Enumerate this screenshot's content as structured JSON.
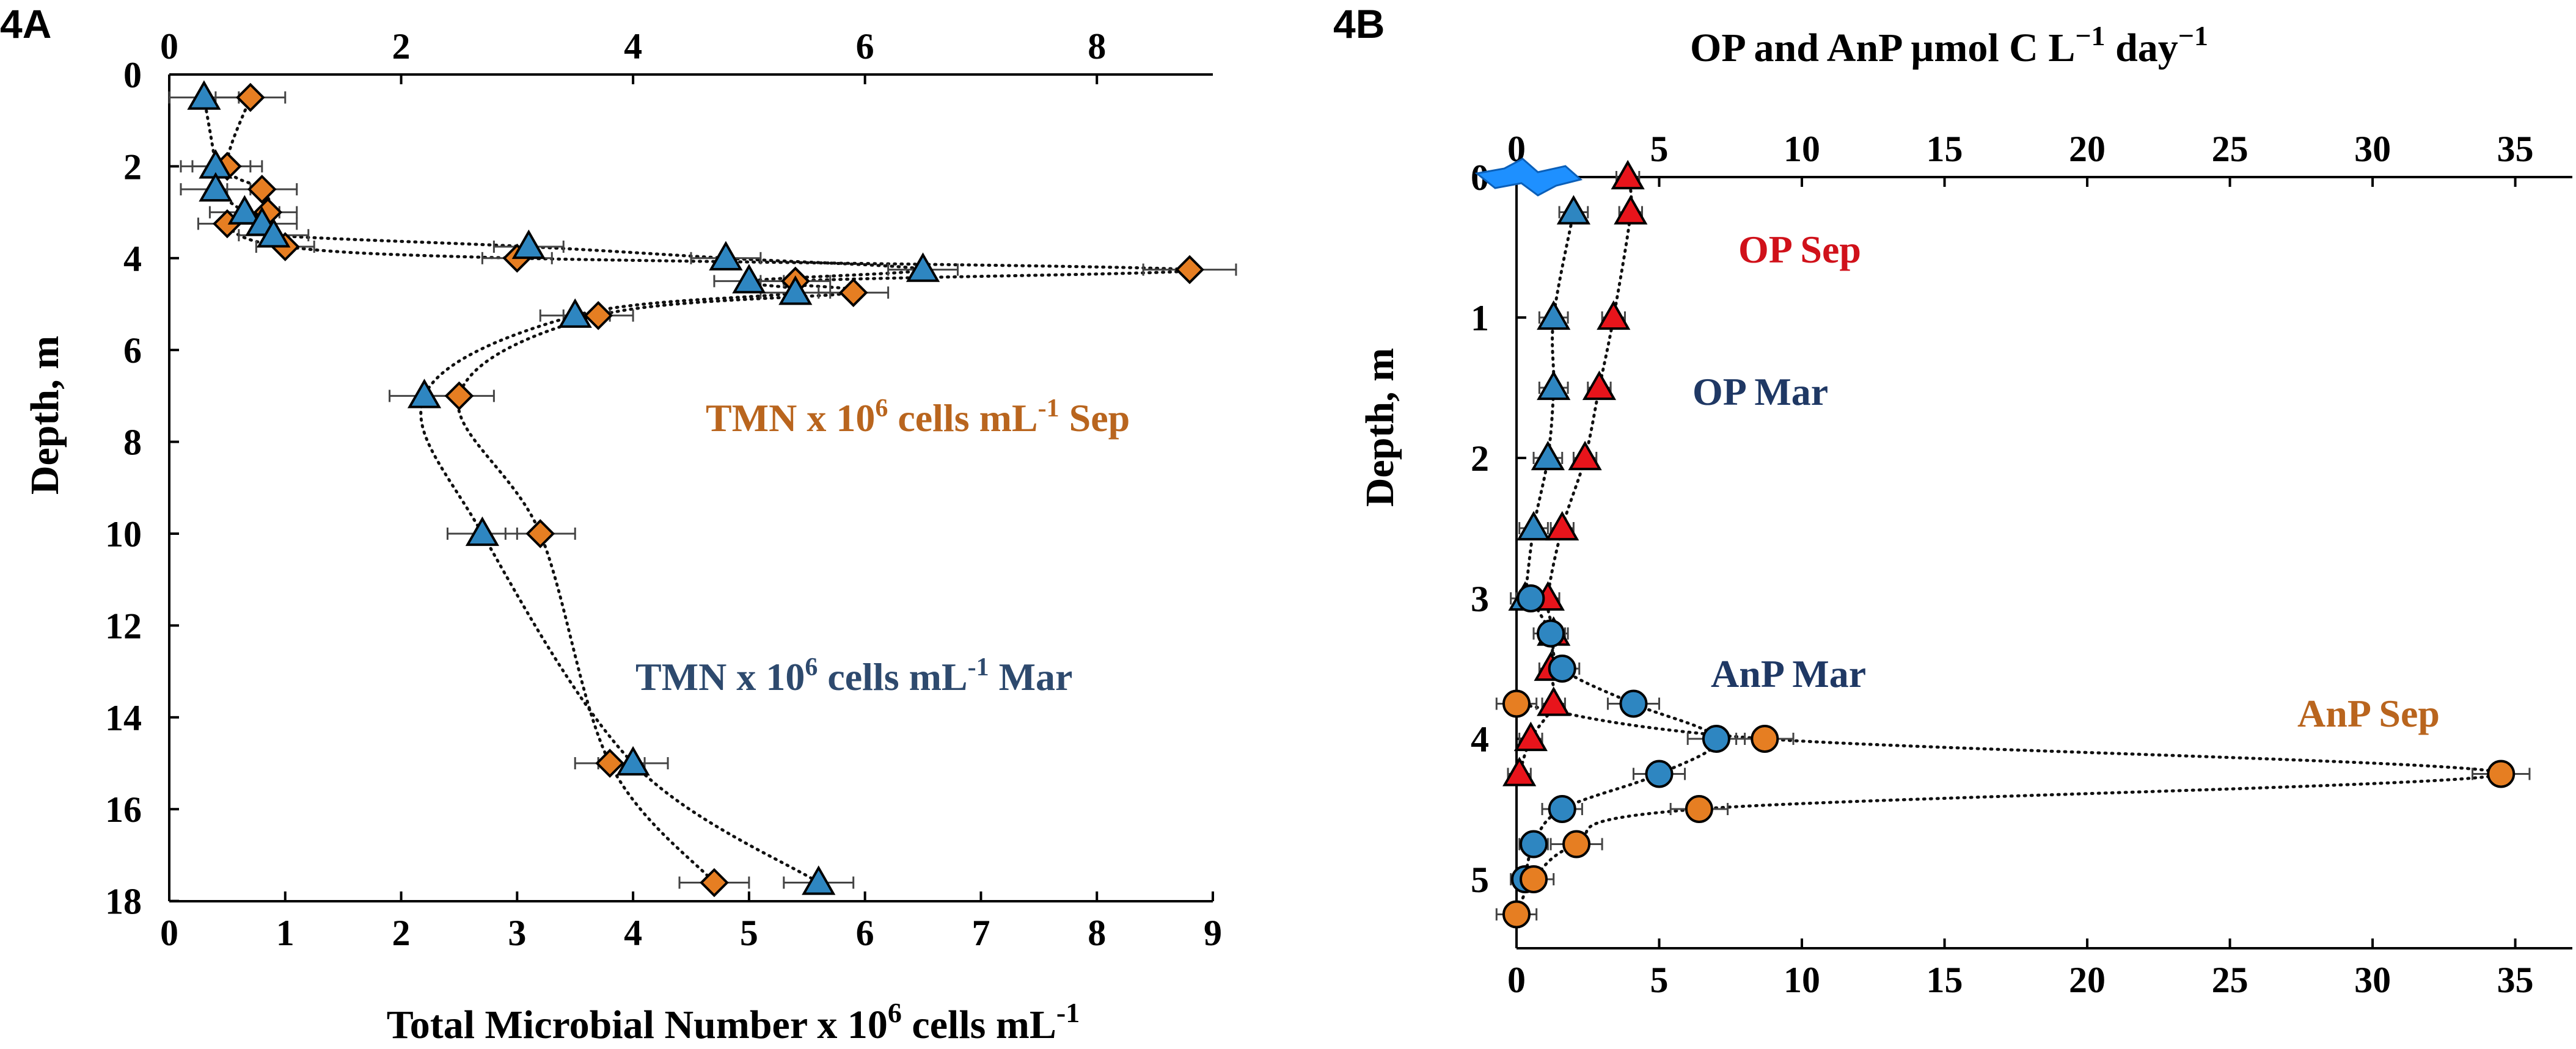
{
  "chart_data": [
    {
      "panel": "4A",
      "type": "scatter",
      "title": "",
      "xlabel": "Total Microbial Number x 10⁶ cells mL⁻¹",
      "ylabel": "Depth, m",
      "xlim": [
        0,
        9
      ],
      "ylim": [
        0,
        18
      ],
      "xticks_bottom": [
        0,
        1,
        2,
        3,
        4,
        5,
        6,
        7,
        8,
        9
      ],
      "xticks_top": [
        0,
        2,
        4,
        6,
        8
      ],
      "yticks": [
        0,
        2,
        4,
        6,
        8,
        10,
        12,
        14,
        16,
        18
      ],
      "grid": false,
      "series": [
        {
          "name": "TMN x 10⁶ cells mL⁻¹ Sep",
          "marker": "diamond",
          "color": "#E67E22",
          "annotation": "TMN x 10⁶ cells mL⁻¹ Sep",
          "x": [
            0.7,
            0.5,
            0.8,
            0.85,
            0.5,
            1.0,
            3.0,
            8.8,
            5.4,
            5.9,
            3.7,
            2.5,
            3.2,
            3.8,
            4.7
          ],
          "y": [
            0.5,
            2.0,
            2.5,
            3.0,
            3.25,
            3.75,
            4.0,
            4.25,
            4.5,
            4.75,
            5.25,
            7.0,
            10.0,
            15.0,
            17.6
          ],
          "xerr": [
            0.3,
            0.3,
            0.3,
            0.25,
            0.25,
            0.25,
            0.3,
            0.4,
            0.3,
            0.3,
            0.3,
            0.3,
            0.3,
            0.3,
            0.3
          ]
        },
        {
          "name": "TMN x 10⁶ cells mL⁻¹ Mar",
          "marker": "triangle",
          "color": "#2E86C1",
          "annotation": "TMN x 10⁶ cells mL⁻¹ Mar",
          "x": [
            0.3,
            0.4,
            0.4,
            0.65,
            0.8,
            0.9,
            3.1,
            4.8,
            6.5,
            5.0,
            5.4,
            3.5,
            2.2,
            2.7,
            4.0,
            5.6
          ],
          "y": [
            0.5,
            2.0,
            2.5,
            3.0,
            3.25,
            3.5,
            3.75,
            4.0,
            4.25,
            4.5,
            4.75,
            5.25,
            7.0,
            10.0,
            15.0,
            17.6
          ],
          "xerr": [
            0.3,
            0.3,
            0.3,
            0.3,
            0.3,
            0.3,
            0.3,
            0.3,
            0.3,
            0.3,
            0.3,
            0.3,
            0.3,
            0.3,
            0.3,
            0.3
          ]
        }
      ]
    },
    {
      "panel": "4B",
      "type": "scatter",
      "title": "OP and AnP   µmol C L⁻¹ day⁻¹",
      "xlabel": "",
      "ylabel": "Depth, m",
      "xlim": [
        0,
        37
      ],
      "ylim": [
        0,
        5.35
      ],
      "xticks_bottom": [
        0,
        5,
        10,
        15,
        20,
        25,
        30,
        35
      ],
      "xticks_top": [
        0,
        5,
        10,
        15,
        20,
        25,
        30,
        35
      ],
      "yticks": [
        0,
        1,
        2,
        3,
        4,
        5
      ],
      "grid": false,
      "series": [
        {
          "name": "OP Sep",
          "marker": "triangle",
          "color": "#E8141B",
          "annotation": "OP Sep",
          "x": [
            3.9,
            4.0,
            3.4,
            2.9,
            2.4,
            1.6,
            1.1,
            1.3,
            1.2,
            1.3,
            0.5,
            0.1
          ],
          "y": [
            0.0,
            0.25,
            1.0,
            1.5,
            2.0,
            2.5,
            3.0,
            3.25,
            3.5,
            3.75,
            4.0,
            4.25
          ],
          "xerr": [
            0.4,
            0.4,
            0.4,
            0.4,
            0.4,
            0.4,
            0.4,
            0.4,
            0.4,
            0.4,
            0.4,
            0.4
          ]
        },
        {
          "name": "OP Mar",
          "marker": "triangle",
          "color": "#2E86C1",
          "annotation": "OP  Mar",
          "x": [
            2.0,
            1.3,
            1.3,
            1.1,
            0.6,
            0.3
          ],
          "y": [
            0.25,
            1.0,
            1.5,
            2.0,
            2.5,
            3.0
          ],
          "xerr": [
            0.5,
            0.5,
            0.5,
            0.5,
            0.5,
            0.5
          ]
        },
        {
          "name": "AnP Mar",
          "marker": "circle",
          "color": "#2E86C1",
          "annotation": "AnP Mar",
          "x": [
            0.5,
            1.2,
            1.6,
            4.1,
            7.0,
            5.0,
            1.6,
            0.6,
            0.3
          ],
          "y": [
            3.0,
            3.25,
            3.5,
            3.75,
            4.0,
            4.25,
            4.5,
            4.75,
            5.0
          ],
          "xerr": [
            0.5,
            0.6,
            0.6,
            0.9,
            1.0,
            0.9,
            0.7,
            0.5,
            0.5
          ]
        },
        {
          "name": "AnP Sep",
          "marker": "circle",
          "color": "#E67E22",
          "annotation": "AnP  Sep",
          "x": [
            0.0,
            8.7,
            34.5,
            6.4,
            2.1,
            0.6,
            0.0
          ],
          "y": [
            3.75,
            4.0,
            4.25,
            4.5,
            4.75,
            5.0,
            5.25
          ],
          "xerr": [
            0.7,
            1.0,
            1.0,
            1.0,
            0.9,
            0.7,
            0.7
          ]
        }
      ],
      "surface_mark": {
        "name": "water-surface-icon",
        "color": "#1E90FF"
      }
    }
  ],
  "panels": {
    "a_label": "4A",
    "b_label": "4B",
    "a_xlabel": "Total Microbial Number x 10",
    "a_xlabel_exp": "6",
    "a_xlabel_tail": " cells mL",
    "a_xlabel_exp2": "-1",
    "a_ylabel": "Depth, m",
    "a_ann_sep": "TMN x 10",
    "a_ann_sep_exp": "6",
    "a_ann_sep_mid": " cells mL",
    "a_ann_sep_exp2": "-1",
    "a_ann_sep_tail": "  Sep",
    "a_ann_mar": "TMN x 10",
    "a_ann_mar_exp": "6",
    "a_ann_mar_mid": " cells mL",
    "a_ann_mar_exp2": "-1",
    "a_ann_mar_tail": "  Mar",
    "b_title": "OP and AnP   µmol C L",
    "b_title_exp": "−1",
    "b_title_mid": " day",
    "b_title_exp2": "−1",
    "b_ylabel": "Depth, m",
    "b_ann_op_sep": "OP Sep",
    "b_ann_op_mar": "OP  Mar",
    "b_ann_anp_mar": "AnP Mar",
    "b_ann_anp_sep": "AnP  Sep"
  },
  "colors": {
    "orange": "#E67E22",
    "blue": "#2E86C1",
    "red": "#E8141B",
    "sep_text": "#B9651E",
    "mar_text": "#2E4A6E",
    "op_sep_text": "#D0111A",
    "navy_text": "#1F3864"
  }
}
